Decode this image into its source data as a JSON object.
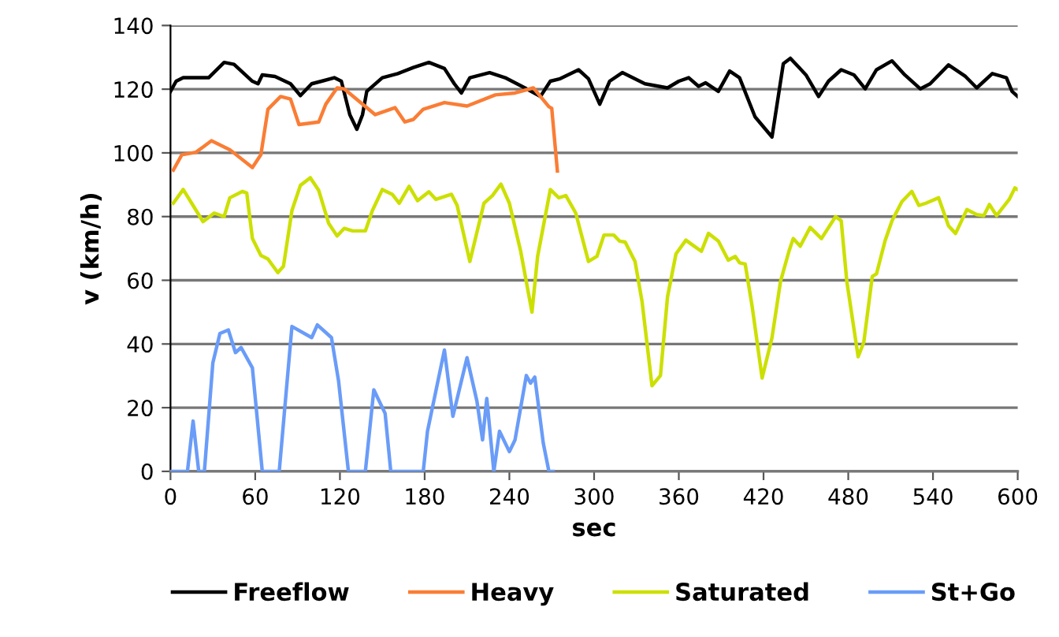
{
  "chart_data": {
    "type": "line",
    "xlabel": "sec",
    "ylabel": "v (km/h)",
    "xlim": [
      0,
      600
    ],
    "xticks": [
      0,
      60,
      120,
      180,
      240,
      300,
      360,
      420,
      480,
      540,
      600
    ],
    "ylim": [
      0,
      140
    ],
    "yticks": [
      0,
      20,
      40,
      60,
      80,
      100,
      120,
      140
    ],
    "grid": "y",
    "legend": "bottom",
    "marker": "none",
    "line_style": "solid",
    "series": [
      {
        "name": "Freeflow",
        "color": "#000000",
        "x": [
          0,
          4,
          9,
          27,
          38,
          45,
          58,
          62,
          65,
          74,
          85,
          92,
          100,
          107,
          116,
          121,
          127,
          132,
          136,
          139,
          150,
          161,
          172,
          183,
          194,
          201,
          206,
          212,
          226,
          237,
          251,
          262,
          269,
          276,
          289,
          296,
          304,
          311,
          320,
          336,
          352,
          360,
          367,
          374,
          379,
          388,
          396,
          403,
          414,
          426,
          434,
          439,
          450,
          459,
          466,
          475,
          484,
          492,
          500,
          511,
          520,
          531,
          538,
          551,
          563,
          571,
          582,
          592,
          596,
          600
        ],
        "values": [
          119.3,
          122.5,
          123.6,
          123.6,
          128.4,
          127.8,
          122.5,
          121.7,
          124.5,
          124,
          121.7,
          118,
          121.7,
          122.5,
          123.6,
          122.5,
          112,
          107.4,
          112,
          119.3,
          123.6,
          124.9,
          126.8,
          128.4,
          126.5,
          121.7,
          118.8,
          123.6,
          125.2,
          123.6,
          120.4,
          117.7,
          122.5,
          123.3,
          126.1,
          123.3,
          115.3,
          122.5,
          125.2,
          121.7,
          120.4,
          122.5,
          123.6,
          120.9,
          122,
          119.3,
          125.7,
          123.6,
          111.3,
          105,
          128,
          129.7,
          124.5,
          117.7,
          122.5,
          126.1,
          124.5,
          120.1,
          126.1,
          128.9,
          124.5,
          120.1,
          121.7,
          127.6,
          124,
          120.4,
          124.9,
          123.6,
          119.3,
          117.7
        ]
      },
      {
        "name": "Heavy",
        "color": "#fa7d35",
        "x": [
          2,
          8,
          18,
          29,
          42,
          58,
          64,
          69,
          78,
          85,
          91,
          105,
          110,
          118,
          123,
          145,
          159,
          166,
          172,
          179,
          194,
          210,
          230,
          244,
          257,
          268,
          270,
          274
        ],
        "values": [
          94.6,
          99.4,
          100.2,
          103.8,
          101,
          95.4,
          99.4,
          113.7,
          117.7,
          116.9,
          108.9,
          109.7,
          115.3,
          120.4,
          120.1,
          112,
          114.2,
          109.7,
          110.5,
          113.7,
          115.8,
          114.7,
          118.2,
          118.8,
          120.4,
          114.5,
          114,
          94.3
        ]
      },
      {
        "name": "Saturated",
        "color": "#cce000",
        "x": [
          2,
          9,
          15,
          23,
          31,
          38,
          42,
          51,
          54,
          58,
          64,
          69,
          76,
          80,
          86,
          92,
          99,
          105,
          112,
          118,
          123,
          129,
          138,
          143,
          150,
          157,
          162,
          169,
          175,
          183,
          188,
          199,
          203,
          212,
          222,
          228,
          234,
          240,
          248,
          256,
          260,
          269,
          275,
          280,
          287,
          296,
          302,
          307,
          314,
          318,
          322,
          329,
          334,
          341,
          347,
          352,
          358,
          365,
          370,
          376,
          381,
          388,
          395,
          400,
          403,
          407,
          412,
          419,
          426,
          432,
          438,
          441,
          446,
          453,
          461,
          471,
          475,
          479,
          487,
          491,
          497,
          500,
          506,
          511,
          518,
          525,
          530,
          535,
          544,
          551,
          556,
          564,
          571,
          576,
          580,
          585,
          594,
          598,
          600
        ],
        "values": [
          84.2,
          88.5,
          84.2,
          78.4,
          81.1,
          80,
          85.9,
          87.9,
          87.4,
          73.1,
          67.8,
          66.7,
          62.4,
          64.4,
          81.9,
          89.8,
          92.2,
          88.2,
          77.9,
          73.9,
          76.3,
          75.5,
          75.5,
          81.9,
          88.5,
          87,
          84.2,
          89.5,
          85,
          87.8,
          85.4,
          87,
          83.5,
          65.9,
          84.2,
          86.6,
          90.2,
          84.2,
          69.1,
          50,
          67.5,
          88.5,
          85.9,
          86.6,
          81.1,
          65.9,
          67.5,
          74.2,
          74.2,
          72.3,
          72,
          65.9,
          53.2,
          26.9,
          30.1,
          54.8,
          68.3,
          72.6,
          71,
          69.1,
          74.7,
          72.3,
          66.3,
          67.5,
          65.5,
          65.1,
          51.6,
          29.3,
          42,
          59.6,
          69.1,
          73.1,
          70.7,
          76.6,
          73.1,
          80,
          78.7,
          59.6,
          36,
          40.5,
          61.2,
          62,
          72.3,
          78.7,
          84.7,
          87.9,
          83.5,
          84.2,
          85.9,
          77.1,
          74.7,
          82.2,
          80.6,
          80.3,
          83.8,
          80.3,
          85.4,
          89,
          88.5
        ]
      },
      {
        "name": "St+Go",
        "color": "#6a9cf8",
        "x": [
          0,
          12,
          16,
          20,
          24,
          30,
          35,
          41,
          46,
          50,
          58,
          65,
          77,
          86,
          100,
          104,
          114,
          119,
          126,
          138,
          144,
          152,
          156,
          179,
          182,
          194,
          200,
          210,
          217,
          221,
          224,
          229,
          233,
          240,
          244,
          252,
          255,
          258,
          264,
          268,
          271
        ],
        "values": [
          0,
          0,
          15.8,
          0,
          0,
          34.1,
          43.3,
          44.4,
          37.3,
          38.9,
          32.5,
          0,
          0,
          45.5,
          42,
          46,
          42,
          28.5,
          0,
          0,
          25.6,
          18.2,
          0,
          0,
          12.6,
          38.1,
          17.3,
          35.7,
          22.1,
          9.9,
          22.9,
          0,
          12.6,
          6.2,
          9.9,
          30.1,
          27.7,
          29.6,
          8.9,
          0,
          0
        ]
      }
    ]
  }
}
